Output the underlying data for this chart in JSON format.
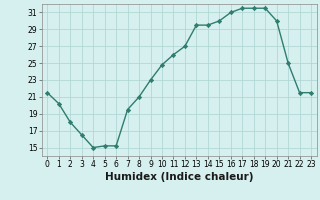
{
  "x": [
    0,
    1,
    2,
    3,
    4,
    5,
    6,
    7,
    8,
    9,
    10,
    11,
    12,
    13,
    14,
    15,
    16,
    17,
    18,
    19,
    20,
    21,
    22,
    23
  ],
  "y": [
    21.5,
    20.2,
    18.0,
    16.5,
    15.0,
    15.2,
    15.2,
    19.5,
    21.0,
    23.0,
    24.8,
    26.0,
    27.0,
    29.5,
    29.5,
    30.0,
    31.0,
    31.5,
    31.5,
    31.5,
    30.0,
    25.0,
    21.5,
    21.5
  ],
  "line_color": "#2e7d6e",
  "marker": "D",
  "marker_size": 2.2,
  "bg_color": "#d6f0ef",
  "grid_color": "#b0d8d4",
  "xlabel": "Humidex (Indice chaleur)",
  "xlim": [
    -0.5,
    23.5
  ],
  "ylim": [
    14,
    32
  ],
  "yticks": [
    15,
    17,
    19,
    21,
    23,
    25,
    27,
    29,
    31
  ],
  "xticks": [
    0,
    1,
    2,
    3,
    4,
    5,
    6,
    7,
    8,
    9,
    10,
    11,
    12,
    13,
    14,
    15,
    16,
    17,
    18,
    19,
    20,
    21,
    22,
    23
  ],
  "tick_fontsize": 5.5,
  "xlabel_fontsize": 7.5,
  "line_width": 1.0
}
